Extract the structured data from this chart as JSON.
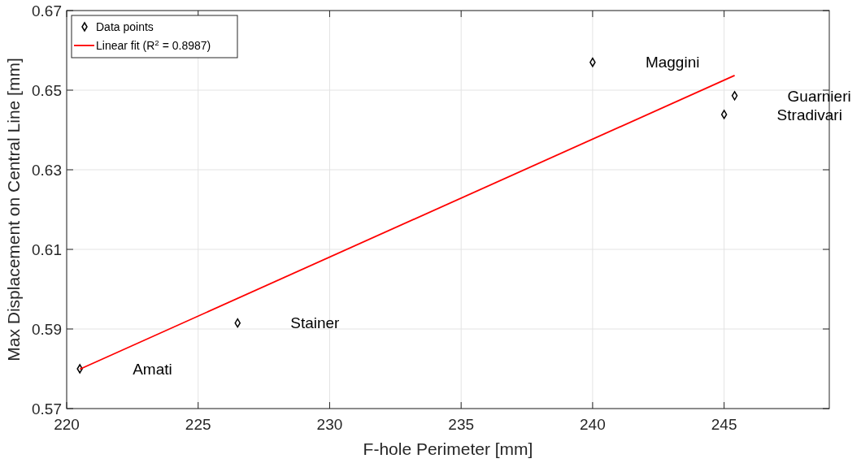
{
  "chart_data": {
    "type": "scatter",
    "xlabel": "F-hole Perimeter [mm]",
    "ylabel": "Max Displacement on Central Line [mm]",
    "xlim": [
      220,
      249
    ],
    "xticks": [
      220,
      225,
      230,
      235,
      240,
      245
    ],
    "ylim": [
      0.57,
      0.67
    ],
    "yticks": [
      0.57,
      0.59,
      0.61,
      0.63,
      0.65,
      0.67
    ],
    "grid": true,
    "legend": "top left",
    "series": [
      {
        "name": "Data points",
        "marker": "diamond",
        "color": "#000000",
        "x": [
          220.5,
          226.5,
          240,
          245.4,
          245.0
        ],
        "values": [
          0.58,
          0.5915,
          0.657,
          0.6486,
          0.6439
        ]
      },
      {
        "name": "Linear fit (R$^{2}$ = 0.8987)",
        "type": "line",
        "marker": "none",
        "color": "#ff0000",
        "x": [
          220.5,
          245.4
        ],
        "values": [
          0.5799,
          0.6537
        ]
      }
    ],
    "annotations": [
      "Amati",
      "Stainer",
      "Maggini",
      "Guarnieri",
      "Stradivari"
    ]
  }
}
